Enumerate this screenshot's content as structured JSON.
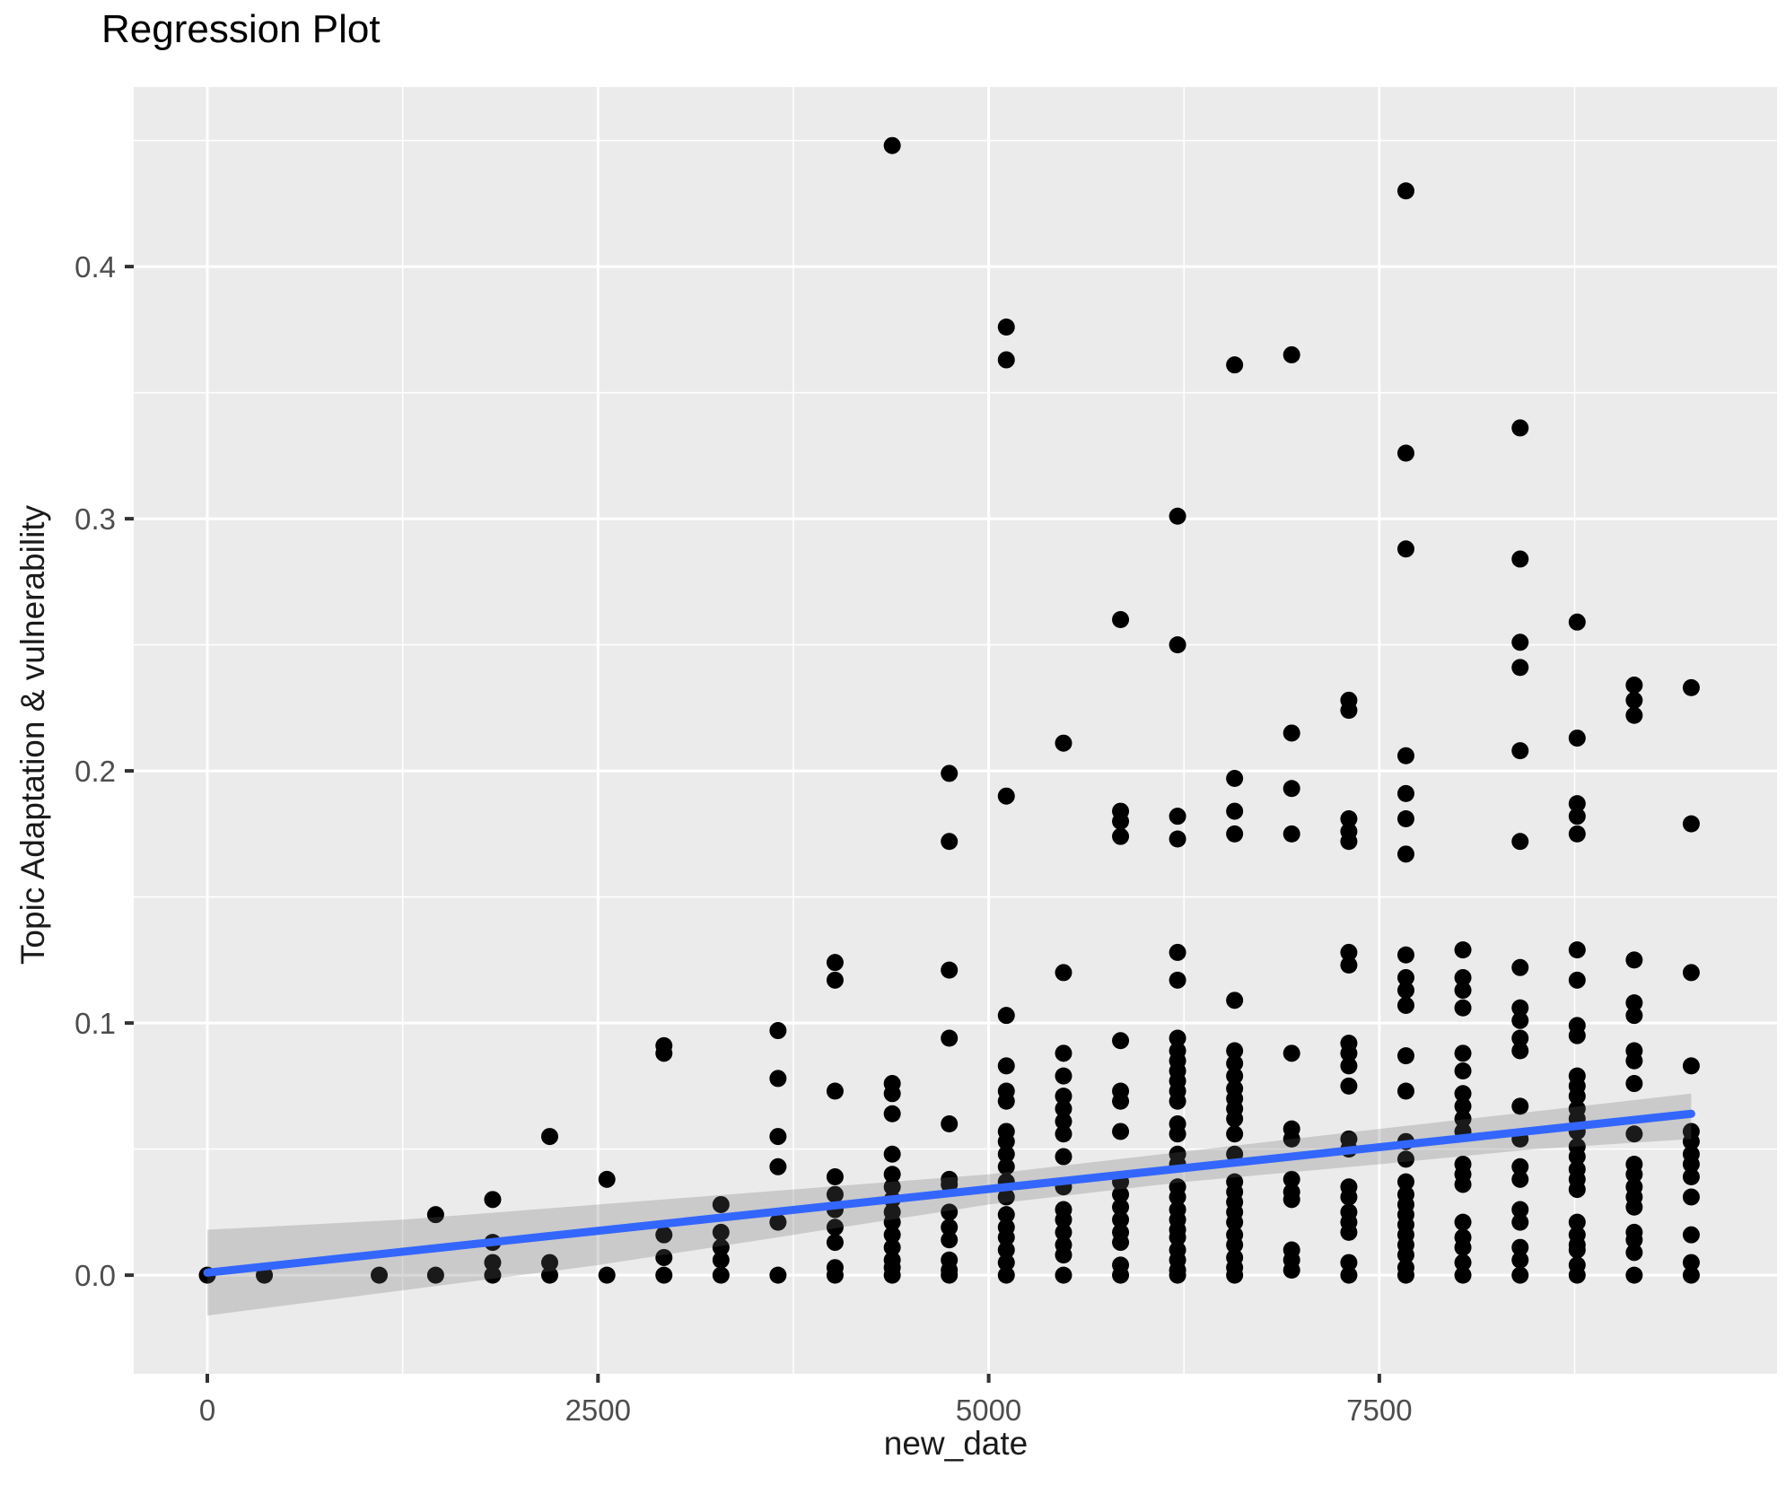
{
  "title": "Regression Plot",
  "x_axis": {
    "label": "new_date",
    "ticks": [
      0,
      2500,
      5000,
      7500
    ],
    "tick_labels": [
      "0",
      "2500",
      "5000",
      "7500"
    ],
    "minor_ticks": [
      1250,
      3750,
      6250,
      8750
    ],
    "domain": [
      -471,
      10045
    ]
  },
  "y_axis": {
    "label": "Topic Adaptation & vulnerability",
    "ticks": [
      0.0,
      0.1,
      0.2,
      0.3,
      0.4
    ],
    "tick_labels": [
      "0.0",
      "0.1",
      "0.2",
      "0.3",
      "0.4"
    ],
    "minor_ticks": [
      0.05,
      0.15,
      0.25,
      0.35,
      0.45
    ],
    "domain": [
      -0.0391,
      0.4712
    ]
  },
  "colors": {
    "panel": "#EBEBEB",
    "grid": "#FFFFFF",
    "point": "#000000",
    "smooth_line": "#3366FF",
    "band": "rgba(102,102,102,0.25)",
    "tick_text": "#4D4D4D",
    "tick_mark": "#333333"
  },
  "chart_data": {
    "type": "scatter",
    "title": "Regression Plot",
    "xlabel": "new_date",
    "ylabel": "Topic Adaptation & vulnerability",
    "xlim": [
      -471,
      10045
    ],
    "ylim": [
      -0.0391,
      0.4712
    ],
    "grid": true,
    "legend": false,
    "smooth_line": {
      "x1": 0,
      "y1": 0.001,
      "x2": 9496,
      "y2": 0.064
    },
    "confidence_band": {
      "x": [
        0,
        1250,
        2500,
        3750,
        5000,
        6250,
        7500,
        8500,
        9496
      ],
      "upper": [
        0.018,
        0.022,
        0.028,
        0.034,
        0.04,
        0.049,
        0.058,
        0.065,
        0.072
      ],
      "lower": [
        -0.016,
        -0.006,
        0.004,
        0.016,
        0.028,
        0.037,
        0.044,
        0.05,
        0.054
      ]
    },
    "points": [
      [
        0,
        0.0
      ],
      [
        365,
        0.0
      ],
      [
        1100,
        0.0
      ],
      [
        1461,
        0.024
      ],
      [
        1461,
        0.0
      ],
      [
        1826,
        0.03
      ],
      [
        1826,
        0.013
      ],
      [
        1826,
        0.005
      ],
      [
        1826,
        0.0
      ],
      [
        2191,
        0.055
      ],
      [
        2191,
        0.005
      ],
      [
        2191,
        0.0
      ],
      [
        2557,
        0.038
      ],
      [
        2557,
        0.0
      ],
      [
        2922,
        0.091
      ],
      [
        2922,
        0.088
      ],
      [
        2922,
        0.016
      ],
      [
        2922,
        0.007
      ],
      [
        2922,
        0.0
      ],
      [
        3287,
        0.028
      ],
      [
        3287,
        0.017
      ],
      [
        3287,
        0.011
      ],
      [
        3287,
        0.006
      ],
      [
        3287,
        0.0
      ],
      [
        3652,
        0.097
      ],
      [
        3652,
        0.078
      ],
      [
        3652,
        0.055
      ],
      [
        3652,
        0.043
      ],
      [
        3652,
        0.021
      ],
      [
        3652,
        0.0
      ],
      [
        4017,
        0.124
      ],
      [
        4017,
        0.117
      ],
      [
        4017,
        0.073
      ],
      [
        4017,
        0.039
      ],
      [
        4017,
        0.032
      ],
      [
        4017,
        0.026
      ],
      [
        4017,
        0.019
      ],
      [
        4017,
        0.013
      ],
      [
        4017,
        0.003
      ],
      [
        4017,
        0.0
      ],
      [
        4383,
        0.448
      ],
      [
        4383,
        0.076
      ],
      [
        4383,
        0.072
      ],
      [
        4383,
        0.064
      ],
      [
        4383,
        0.048
      ],
      [
        4383,
        0.04
      ],
      [
        4383,
        0.035
      ],
      [
        4383,
        0.03
      ],
      [
        4383,
        0.025
      ],
      [
        4383,
        0.021
      ],
      [
        4383,
        0.016
      ],
      [
        4383,
        0.011
      ],
      [
        4383,
        0.006
      ],
      [
        4383,
        0.003
      ],
      [
        4383,
        0.0
      ],
      [
        4748,
        0.199
      ],
      [
        4748,
        0.172
      ],
      [
        4748,
        0.121
      ],
      [
        4748,
        0.094
      ],
      [
        4748,
        0.06
      ],
      [
        4748,
        0.038
      ],
      [
        4748,
        0.036
      ],
      [
        4748,
        0.025
      ],
      [
        4748,
        0.019
      ],
      [
        4748,
        0.014
      ],
      [
        4748,
        0.006
      ],
      [
        4748,
        0.002
      ],
      [
        4748,
        0.0
      ],
      [
        5113,
        0.376
      ],
      [
        5113,
        0.363
      ],
      [
        5113,
        0.19
      ],
      [
        5113,
        0.103
      ],
      [
        5113,
        0.083
      ],
      [
        5113,
        0.073
      ],
      [
        5113,
        0.069
      ],
      [
        5113,
        0.057
      ],
      [
        5113,
        0.053
      ],
      [
        5113,
        0.048
      ],
      [
        5113,
        0.043
      ],
      [
        5113,
        0.037
      ],
      [
        5113,
        0.031
      ],
      [
        5113,
        0.024
      ],
      [
        5113,
        0.019
      ],
      [
        5113,
        0.015
      ],
      [
        5113,
        0.01
      ],
      [
        5113,
        0.005
      ],
      [
        5113,
        0.0
      ],
      [
        5479,
        0.211
      ],
      [
        5479,
        0.12
      ],
      [
        5479,
        0.088
      ],
      [
        5479,
        0.079
      ],
      [
        5479,
        0.071
      ],
      [
        5479,
        0.066
      ],
      [
        5479,
        0.061
      ],
      [
        5479,
        0.056
      ],
      [
        5479,
        0.047
      ],
      [
        5479,
        0.035
      ],
      [
        5479,
        0.026
      ],
      [
        5479,
        0.022
      ],
      [
        5479,
        0.017
      ],
      [
        5479,
        0.012
      ],
      [
        5479,
        0.008
      ],
      [
        5479,
        0.0
      ],
      [
        5844,
        0.26
      ],
      [
        5844,
        0.184
      ],
      [
        5844,
        0.18
      ],
      [
        5844,
        0.174
      ],
      [
        5844,
        0.093
      ],
      [
        5844,
        0.073
      ],
      [
        5844,
        0.069
      ],
      [
        5844,
        0.057
      ],
      [
        5844,
        0.037
      ],
      [
        5844,
        0.032
      ],
      [
        5844,
        0.027
      ],
      [
        5844,
        0.022
      ],
      [
        5844,
        0.017
      ],
      [
        5844,
        0.013
      ],
      [
        5844,
        0.004
      ],
      [
        5844,
        0.0
      ],
      [
        6209,
        0.301
      ],
      [
        6209,
        0.25
      ],
      [
        6209,
        0.182
      ],
      [
        6209,
        0.173
      ],
      [
        6209,
        0.128
      ],
      [
        6209,
        0.117
      ],
      [
        6209,
        0.094
      ],
      [
        6209,
        0.089
      ],
      [
        6209,
        0.085
      ],
      [
        6209,
        0.081
      ],
      [
        6209,
        0.077
      ],
      [
        6209,
        0.073
      ],
      [
        6209,
        0.069
      ],
      [
        6209,
        0.06
      ],
      [
        6209,
        0.056
      ],
      [
        6209,
        0.048
      ],
      [
        6209,
        0.044
      ],
      [
        6209,
        0.035
      ],
      [
        6209,
        0.031
      ],
      [
        6209,
        0.026
      ],
      [
        6209,
        0.022
      ],
      [
        6209,
        0.018
      ],
      [
        6209,
        0.015
      ],
      [
        6209,
        0.01
      ],
      [
        6209,
        0.006
      ],
      [
        6209,
        0.002
      ],
      [
        6209,
        0.0
      ],
      [
        6574,
        0.361
      ],
      [
        6574,
        0.197
      ],
      [
        6574,
        0.184
      ],
      [
        6574,
        0.175
      ],
      [
        6574,
        0.109
      ],
      [
        6574,
        0.089
      ],
      [
        6574,
        0.084
      ],
      [
        6574,
        0.079
      ],
      [
        6574,
        0.074
      ],
      [
        6574,
        0.07
      ],
      [
        6574,
        0.066
      ],
      [
        6574,
        0.062
      ],
      [
        6574,
        0.056
      ],
      [
        6574,
        0.048
      ],
      [
        6574,
        0.037
      ],
      [
        6574,
        0.033
      ],
      [
        6574,
        0.029
      ],
      [
        6574,
        0.025
      ],
      [
        6574,
        0.021
      ],
      [
        6574,
        0.016
      ],
      [
        6574,
        0.012
      ],
      [
        6574,
        0.007
      ],
      [
        6574,
        0.003
      ],
      [
        6574,
        0.0
      ],
      [
        6939,
        0.365
      ],
      [
        6939,
        0.215
      ],
      [
        6939,
        0.193
      ],
      [
        6939,
        0.175
      ],
      [
        6939,
        0.088
      ],
      [
        6939,
        0.058
      ],
      [
        6939,
        0.054
      ],
      [
        6939,
        0.038
      ],
      [
        6939,
        0.033
      ],
      [
        6939,
        0.03
      ],
      [
        6939,
        0.01
      ],
      [
        6939,
        0.006
      ],
      [
        6939,
        0.002
      ],
      [
        7305,
        0.228
      ],
      [
        7305,
        0.224
      ],
      [
        7305,
        0.181
      ],
      [
        7305,
        0.176
      ],
      [
        7305,
        0.172
      ],
      [
        7305,
        0.128
      ],
      [
        7305,
        0.123
      ],
      [
        7305,
        0.092
      ],
      [
        7305,
        0.088
      ],
      [
        7305,
        0.083
      ],
      [
        7305,
        0.075
      ],
      [
        7305,
        0.054
      ],
      [
        7305,
        0.05
      ],
      [
        7305,
        0.035
      ],
      [
        7305,
        0.031
      ],
      [
        7305,
        0.025
      ],
      [
        7305,
        0.021
      ],
      [
        7305,
        0.017
      ],
      [
        7305,
        0.005
      ],
      [
        7305,
        0.0
      ],
      [
        7670,
        0.43
      ],
      [
        7670,
        0.326
      ],
      [
        7670,
        0.288
      ],
      [
        7670,
        0.206
      ],
      [
        7670,
        0.191
      ],
      [
        7670,
        0.181
      ],
      [
        7670,
        0.167
      ],
      [
        7670,
        0.127
      ],
      [
        7670,
        0.118
      ],
      [
        7670,
        0.113
      ],
      [
        7670,
        0.107
      ],
      [
        7670,
        0.087
      ],
      [
        7670,
        0.073
      ],
      [
        7670,
        0.053
      ],
      [
        7670,
        0.046
      ],
      [
        7670,
        0.037
      ],
      [
        7670,
        0.032
      ],
      [
        7670,
        0.028
      ],
      [
        7670,
        0.024
      ],
      [
        7670,
        0.02
      ],
      [
        7670,
        0.016
      ],
      [
        7670,
        0.012
      ],
      [
        7670,
        0.008
      ],
      [
        7670,
        0.003
      ],
      [
        7670,
        0.0
      ],
      [
        8035,
        0.129
      ],
      [
        8035,
        0.118
      ],
      [
        8035,
        0.113
      ],
      [
        8035,
        0.106
      ],
      [
        8035,
        0.088
      ],
      [
        8035,
        0.081
      ],
      [
        8035,
        0.072
      ],
      [
        8035,
        0.067
      ],
      [
        8035,
        0.062
      ],
      [
        8035,
        0.057
      ],
      [
        8035,
        0.044
      ],
      [
        8035,
        0.04
      ],
      [
        8035,
        0.036
      ],
      [
        8035,
        0.021
      ],
      [
        8035,
        0.015
      ],
      [
        8035,
        0.011
      ],
      [
        8035,
        0.005
      ],
      [
        8035,
        0.0
      ],
      [
        8401,
        0.336
      ],
      [
        8401,
        0.284
      ],
      [
        8401,
        0.251
      ],
      [
        8401,
        0.241
      ],
      [
        8401,
        0.208
      ],
      [
        8401,
        0.172
      ],
      [
        8401,
        0.122
      ],
      [
        8401,
        0.106
      ],
      [
        8401,
        0.101
      ],
      [
        8401,
        0.094
      ],
      [
        8401,
        0.089
      ],
      [
        8401,
        0.067
      ],
      [
        8401,
        0.054
      ],
      [
        8401,
        0.043
      ],
      [
        8401,
        0.038
      ],
      [
        8401,
        0.026
      ],
      [
        8401,
        0.021
      ],
      [
        8401,
        0.011
      ],
      [
        8401,
        0.006
      ],
      [
        8401,
        0.0
      ],
      [
        8766,
        0.259
      ],
      [
        8766,
        0.213
      ],
      [
        8766,
        0.187
      ],
      [
        8766,
        0.182
      ],
      [
        8766,
        0.175
      ],
      [
        8766,
        0.129
      ],
      [
        8766,
        0.117
      ],
      [
        8766,
        0.099
      ],
      [
        8766,
        0.095
      ],
      [
        8766,
        0.079
      ],
      [
        8766,
        0.075
      ],
      [
        8766,
        0.071
      ],
      [
        8766,
        0.066
      ],
      [
        8766,
        0.062
      ],
      [
        8766,
        0.057
      ],
      [
        8766,
        0.051
      ],
      [
        8766,
        0.047
      ],
      [
        8766,
        0.042
      ],
      [
        8766,
        0.038
      ],
      [
        8766,
        0.034
      ],
      [
        8766,
        0.021
      ],
      [
        8766,
        0.016
      ],
      [
        8766,
        0.012
      ],
      [
        8766,
        0.01
      ],
      [
        8766,
        0.004
      ],
      [
        8766,
        0.0
      ],
      [
        9131,
        0.234
      ],
      [
        9131,
        0.228
      ],
      [
        9131,
        0.222
      ],
      [
        9131,
        0.125
      ],
      [
        9131,
        0.108
      ],
      [
        9131,
        0.103
      ],
      [
        9131,
        0.089
      ],
      [
        9131,
        0.085
      ],
      [
        9131,
        0.076
      ],
      [
        9131,
        0.056
      ],
      [
        9131,
        0.044
      ],
      [
        9131,
        0.04
      ],
      [
        9131,
        0.035
      ],
      [
        9131,
        0.031
      ],
      [
        9131,
        0.027
      ],
      [
        9131,
        0.017
      ],
      [
        9131,
        0.014
      ],
      [
        9131,
        0.009
      ],
      [
        9131,
        0.0
      ],
      [
        9496,
        0.233
      ],
      [
        9496,
        0.179
      ],
      [
        9496,
        0.12
      ],
      [
        9496,
        0.083
      ],
      [
        9496,
        0.057
      ],
      [
        9496,
        0.053
      ],
      [
        9496,
        0.048
      ],
      [
        9496,
        0.044
      ],
      [
        9496,
        0.039
      ],
      [
        9496,
        0.031
      ],
      [
        9496,
        0.016
      ],
      [
        9496,
        0.005
      ],
      [
        9496,
        0.0
      ]
    ]
  }
}
